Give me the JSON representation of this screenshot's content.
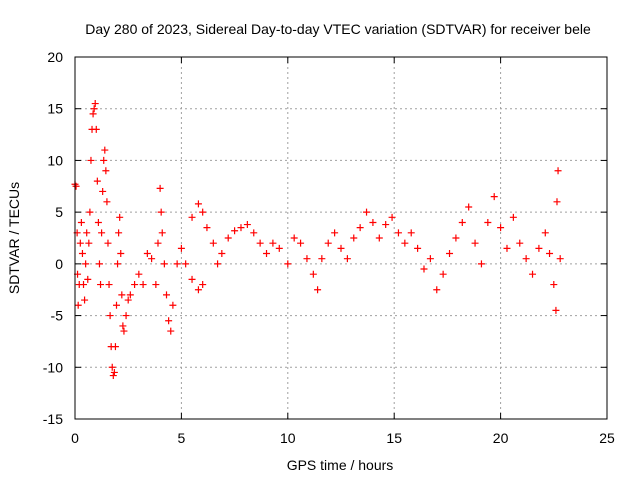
{
  "chart_data": {
    "type": "scatter",
    "title": "Day 280 of 2023, Sidereal Day-to-day VTEC variation (SDTVAR) for receiver bele",
    "xlabel": "GPS time / hours",
    "ylabel": "SDTVAR / TECUs",
    "xlim": [
      0,
      25
    ],
    "ylim": [
      -15,
      20
    ],
    "xticks": [
      0,
      5,
      10,
      15,
      20,
      25
    ],
    "yticks": [
      -15,
      -10,
      -5,
      0,
      5,
      10,
      15,
      20
    ],
    "grid": true,
    "marker": "+",
    "color": "#ff0000",
    "series": [
      {
        "name": "SDTVAR",
        "points": [
          [
            0.0,
            7.7
          ],
          [
            0.05,
            7.5
          ],
          [
            0.1,
            3.0
          ],
          [
            0.12,
            -1.0
          ],
          [
            0.15,
            -4.0
          ],
          [
            0.2,
            -2.0
          ],
          [
            0.25,
            2.0
          ],
          [
            0.3,
            4.0
          ],
          [
            0.35,
            1.0
          ],
          [
            0.4,
            -2.0
          ],
          [
            0.45,
            -3.5
          ],
          [
            0.5,
            0.0
          ],
          [
            0.55,
            3.0
          ],
          [
            0.6,
            -1.5
          ],
          [
            0.65,
            2.0
          ],
          [
            0.7,
            5.0
          ],
          [
            0.75,
            10.0
          ],
          [
            0.8,
            13.0
          ],
          [
            0.85,
            14.5
          ],
          [
            0.9,
            15.0
          ],
          [
            0.95,
            15.5
          ],
          [
            1.0,
            13.0
          ],
          [
            1.05,
            8.0
          ],
          [
            1.1,
            4.0
          ],
          [
            1.15,
            0.0
          ],
          [
            1.2,
            -2.0
          ],
          [
            1.25,
            3.0
          ],
          [
            1.3,
            7.0
          ],
          [
            1.35,
            10.0
          ],
          [
            1.4,
            11.0
          ],
          [
            1.45,
            9.0
          ],
          [
            1.5,
            6.0
          ],
          [
            1.55,
            2.0
          ],
          [
            1.6,
            -2.0
          ],
          [
            1.65,
            -5.0
          ],
          [
            1.7,
            -8.0
          ],
          [
            1.75,
            -10.0
          ],
          [
            1.8,
            -10.8
          ],
          [
            1.85,
            -10.5
          ],
          [
            1.9,
            -8.0
          ],
          [
            1.95,
            -4.0
          ],
          [
            2.0,
            0.0
          ],
          [
            2.05,
            3.0
          ],
          [
            2.1,
            4.5
          ],
          [
            2.15,
            1.0
          ],
          [
            2.2,
            -3.0
          ],
          [
            2.25,
            -6.0
          ],
          [
            2.3,
            -6.5
          ],
          [
            2.4,
            -5.0
          ],
          [
            2.5,
            -3.5
          ],
          [
            2.6,
            -3.0
          ],
          [
            2.8,
            -2.0
          ],
          [
            3.0,
            -1.0
          ],
          [
            3.2,
            -2.0
          ],
          [
            3.4,
            1.0
          ],
          [
            3.6,
            0.5
          ],
          [
            3.8,
            -2.0
          ],
          [
            3.9,
            2.0
          ],
          [
            4.0,
            7.3
          ],
          [
            4.05,
            5.0
          ],
          [
            4.1,
            3.0
          ],
          [
            4.2,
            0.0
          ],
          [
            4.3,
            -3.0
          ],
          [
            4.4,
            -5.5
          ],
          [
            4.5,
            -6.5
          ],
          [
            4.6,
            -4.0
          ],
          [
            4.8,
            0.0
          ],
          [
            5.0,
            1.5
          ],
          [
            5.2,
            0.0
          ],
          [
            5.5,
            -1.5
          ],
          [
            5.8,
            -2.5
          ],
          [
            6.0,
            -2.0
          ],
          [
            5.5,
            4.5
          ],
          [
            5.8,
            5.8
          ],
          [
            6.0,
            5.0
          ],
          [
            6.2,
            3.5
          ],
          [
            6.5,
            2.0
          ],
          [
            6.7,
            0.0
          ],
          [
            6.9,
            1.0
          ],
          [
            7.2,
            2.5
          ],
          [
            7.5,
            3.2
          ],
          [
            7.8,
            3.5
          ],
          [
            8.1,
            3.8
          ],
          [
            8.4,
            3.0
          ],
          [
            8.7,
            2.0
          ],
          [
            9.0,
            1.0
          ],
          [
            9.3,
            2.0
          ],
          [
            9.6,
            1.5
          ],
          [
            10.0,
            0.0
          ],
          [
            10.3,
            2.5
          ],
          [
            10.6,
            2.0
          ],
          [
            10.9,
            0.5
          ],
          [
            11.2,
            -1.0
          ],
          [
            11.4,
            -2.5
          ],
          [
            11.6,
            0.5
          ],
          [
            11.9,
            2.0
          ],
          [
            12.2,
            3.0
          ],
          [
            12.5,
            1.5
          ],
          [
            12.8,
            0.5
          ],
          [
            13.1,
            2.5
          ],
          [
            13.4,
            3.5
          ],
          [
            13.7,
            5.0
          ],
          [
            14.0,
            4.0
          ],
          [
            14.3,
            2.5
          ],
          [
            14.6,
            3.8
          ],
          [
            14.9,
            4.5
          ],
          [
            15.2,
            3.0
          ],
          [
            15.5,
            2.0
          ],
          [
            15.8,
            3.0
          ],
          [
            16.1,
            1.5
          ],
          [
            16.4,
            -0.5
          ],
          [
            16.7,
            0.5
          ],
          [
            17.0,
            -2.5
          ],
          [
            17.3,
            -1.0
          ],
          [
            17.6,
            1.0
          ],
          [
            17.9,
            2.5
          ],
          [
            18.2,
            4.0
          ],
          [
            18.5,
            5.5
          ],
          [
            18.8,
            2.0
          ],
          [
            19.1,
            0.0
          ],
          [
            19.4,
            4.0
          ],
          [
            19.7,
            6.5
          ],
          [
            20.0,
            3.5
          ],
          [
            20.3,
            1.5
          ],
          [
            20.6,
            4.5
          ],
          [
            20.9,
            2.0
          ],
          [
            21.2,
            0.5
          ],
          [
            21.5,
            -1.0
          ],
          [
            21.8,
            1.5
          ],
          [
            22.1,
            3.0
          ],
          [
            22.3,
            1.0
          ],
          [
            22.5,
            -2.0
          ],
          [
            22.6,
            -4.5
          ],
          [
            22.65,
            6.0
          ],
          [
            22.7,
            9.0
          ],
          [
            22.8,
            0.5
          ]
        ]
      }
    ]
  }
}
